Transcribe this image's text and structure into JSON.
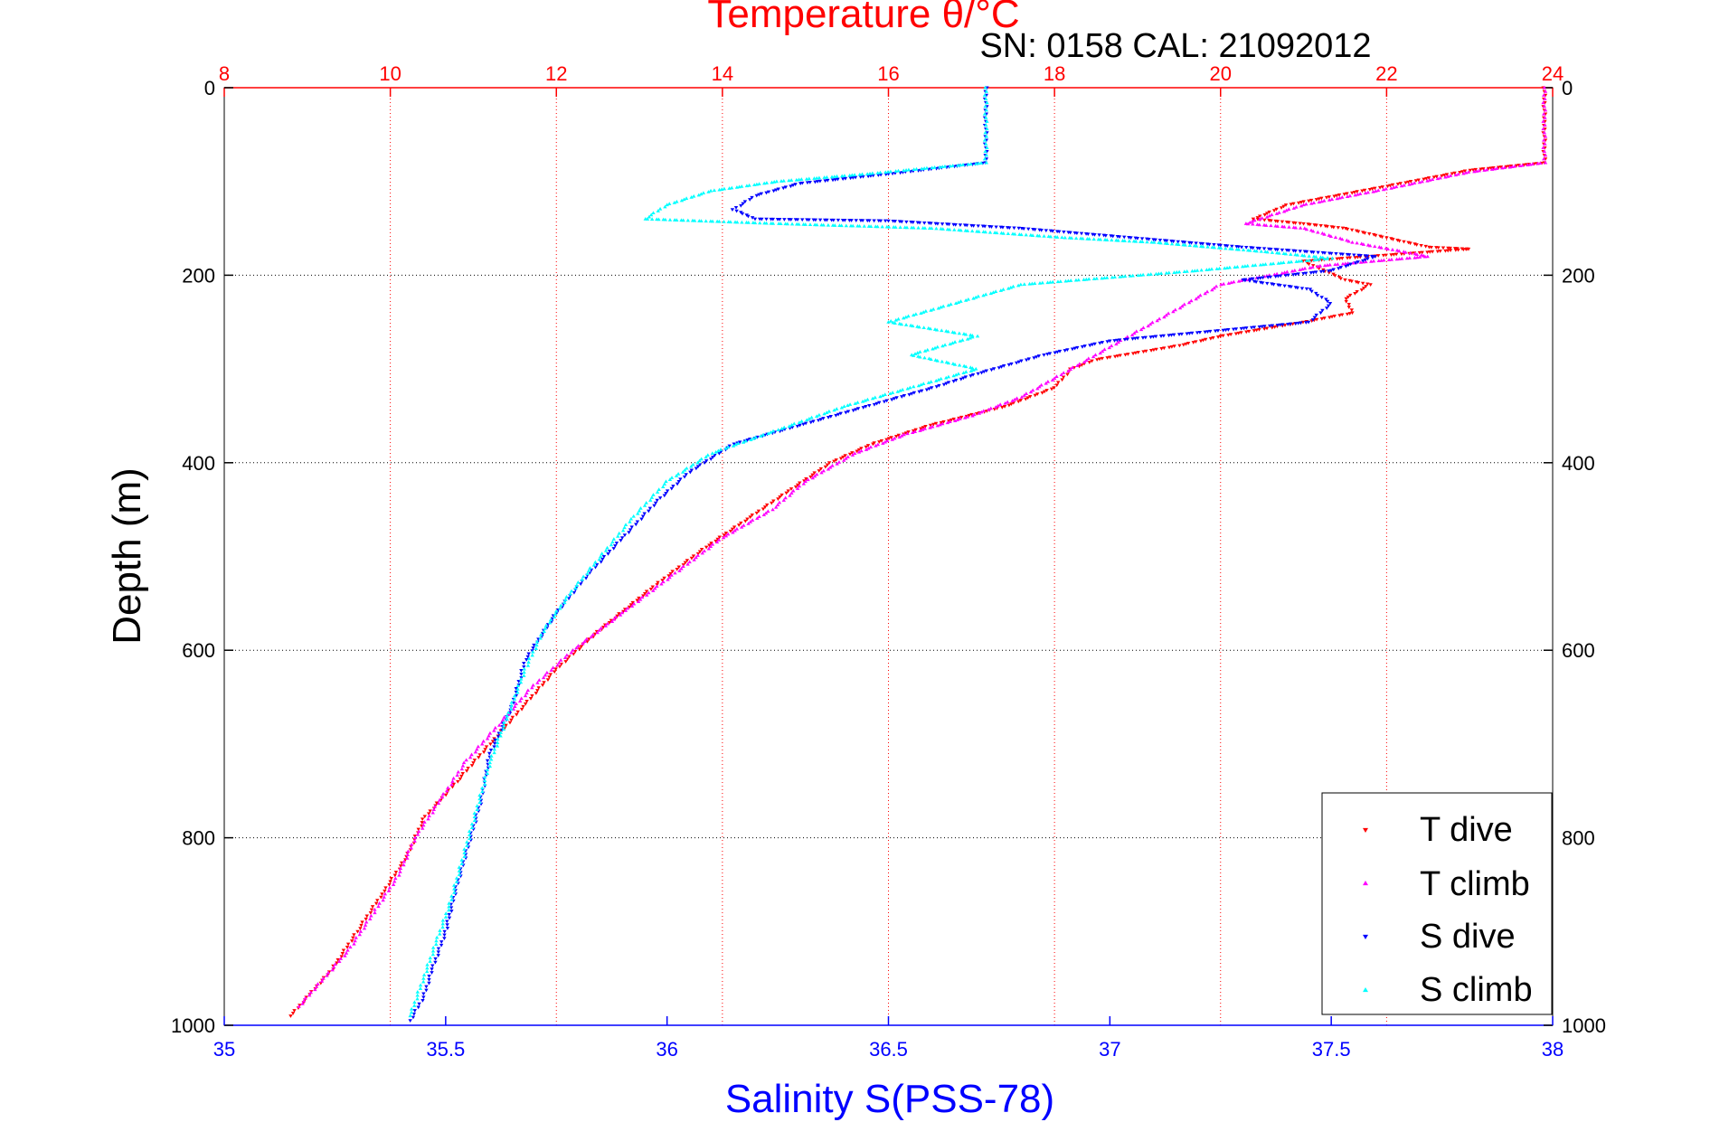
{
  "chart_data": {
    "type": "scatter",
    "title": "Temperature θ/°C",
    "annotation": "SN: 0158  CAL: 21092012",
    "xlabel": "Salinity S(PSS-78)",
    "ylabel": "Depth (m)",
    "x_bottom": {
      "label": "Salinity S(PSS-78)",
      "range": [
        35,
        38
      ],
      "ticks": [
        "35",
        "35.5",
        "36",
        "36.5",
        "37",
        "37.5",
        "38"
      ],
      "color": "#0000ff"
    },
    "x_top": {
      "label": "Temperature θ/°C",
      "range": [
        8,
        24
      ],
      "ticks": [
        "8",
        "10",
        "12",
        "14",
        "16",
        "18",
        "20",
        "22",
        "24"
      ],
      "color": "#ff0000"
    },
    "y": {
      "label": "Depth (m)",
      "range": [
        0,
        1000
      ],
      "reversed": true,
      "ticks": [
        "0",
        "200",
        "400",
        "600",
        "800",
        "1000"
      ]
    },
    "grid": true,
    "legend_position": "bottom-right",
    "series": [
      {
        "name": "T dive",
        "axis": "temperature",
        "color": "#ff0000",
        "marker": "triangle-down",
        "points": [
          [
            23.9,
            0
          ],
          [
            23.9,
            40
          ],
          [
            23.9,
            80
          ],
          [
            23.0,
            88
          ],
          [
            22.0,
            105
          ],
          [
            20.8,
            125
          ],
          [
            20.4,
            140
          ],
          [
            21.0,
            145
          ],
          [
            21.5,
            150
          ],
          [
            22.5,
            170
          ],
          [
            23.0,
            172
          ],
          [
            21.0,
            185
          ],
          [
            21.5,
            205
          ],
          [
            21.8,
            210
          ],
          [
            21.5,
            225
          ],
          [
            21.6,
            240
          ],
          [
            21.0,
            250
          ],
          [
            20.0,
            265
          ],
          [
            19.5,
            275
          ],
          [
            18.5,
            290
          ],
          [
            18.2,
            300
          ],
          [
            18.0,
            320
          ],
          [
            17.4,
            340
          ],
          [
            16.5,
            360
          ],
          [
            15.8,
            380
          ],
          [
            15.3,
            400
          ],
          [
            14.8,
            430
          ],
          [
            14.3,
            460
          ],
          [
            13.8,
            490
          ],
          [
            13.2,
            530
          ],
          [
            12.5,
            580
          ],
          [
            12.0,
            620
          ],
          [
            11.6,
            660
          ],
          [
            11.2,
            700
          ],
          [
            10.8,
            740
          ],
          [
            10.4,
            780
          ],
          [
            10.2,
            820
          ],
          [
            9.9,
            860
          ],
          [
            9.6,
            900
          ],
          [
            9.3,
            940
          ],
          [
            9.0,
            970
          ],
          [
            8.8,
            990
          ]
        ]
      },
      {
        "name": "T climb",
        "axis": "temperature",
        "color": "#ff00ff",
        "marker": "triangle-up",
        "points": [
          [
            23.9,
            0
          ],
          [
            23.9,
            40
          ],
          [
            23.9,
            80
          ],
          [
            23.0,
            90
          ],
          [
            22.0,
            108
          ],
          [
            21.0,
            125
          ],
          [
            20.3,
            145
          ],
          [
            21.0,
            150
          ],
          [
            21.6,
            165
          ],
          [
            22.5,
            180
          ],
          [
            21.2,
            190
          ],
          [
            20.0,
            210
          ],
          [
            19.5,
            235
          ],
          [
            19.0,
            260
          ],
          [
            18.5,
            285
          ],
          [
            18.0,
            310
          ],
          [
            17.6,
            330
          ],
          [
            17.0,
            350
          ],
          [
            16.2,
            370
          ],
          [
            15.6,
            390
          ],
          [
            15.0,
            420
          ],
          [
            14.6,
            450
          ],
          [
            14.0,
            480
          ],
          [
            13.4,
            520
          ],
          [
            12.8,
            560
          ],
          [
            12.2,
            600
          ],
          [
            11.7,
            640
          ],
          [
            11.3,
            680
          ],
          [
            10.9,
            720
          ],
          [
            10.6,
            760
          ],
          [
            10.3,
            800
          ],
          [
            10.1,
            840
          ],
          [
            9.8,
            880
          ],
          [
            9.5,
            920
          ],
          [
            9.2,
            950
          ],
          [
            8.9,
            980
          ]
        ]
      },
      {
        "name": "S dive",
        "axis": "salinity",
        "color": "#0000ff",
        "marker": "triangle-down",
        "points": [
          [
            36.72,
            0
          ],
          [
            36.72,
            40
          ],
          [
            36.72,
            80
          ],
          [
            36.5,
            92
          ],
          [
            36.3,
            102
          ],
          [
            36.2,
            115
          ],
          [
            36.15,
            130
          ],
          [
            36.2,
            140
          ],
          [
            36.5,
            142
          ],
          [
            36.8,
            150
          ],
          [
            37.0,
            158
          ],
          [
            37.3,
            170
          ],
          [
            37.6,
            180
          ],
          [
            37.5,
            195
          ],
          [
            37.3,
            205
          ],
          [
            37.45,
            215
          ],
          [
            37.5,
            230
          ],
          [
            37.45,
            250
          ],
          [
            37.0,
            270
          ],
          [
            36.85,
            285
          ],
          [
            36.7,
            305
          ],
          [
            36.6,
            320
          ],
          [
            36.45,
            340
          ],
          [
            36.3,
            360
          ],
          [
            36.15,
            380
          ],
          [
            36.05,
            410
          ],
          [
            35.98,
            440
          ],
          [
            35.9,
            480
          ],
          [
            35.82,
            520
          ],
          [
            35.75,
            560
          ],
          [
            35.68,
            610
          ],
          [
            35.65,
            660
          ],
          [
            35.6,
            710
          ],
          [
            35.58,
            760
          ],
          [
            35.55,
            810
          ],
          [
            35.52,
            860
          ],
          [
            35.5,
            900
          ],
          [
            35.47,
            940
          ],
          [
            35.45,
            970
          ],
          [
            35.42,
            995
          ]
        ]
      },
      {
        "name": "S climb",
        "axis": "salinity",
        "color": "#00ffff",
        "marker": "triangle-up",
        "points": [
          [
            36.72,
            0
          ],
          [
            36.72,
            40
          ],
          [
            36.72,
            80
          ],
          [
            36.45,
            92
          ],
          [
            36.25,
            100
          ],
          [
            36.1,
            110
          ],
          [
            36.0,
            125
          ],
          [
            35.95,
            140
          ],
          [
            36.25,
            145
          ],
          [
            36.6,
            150
          ],
          [
            36.9,
            160
          ],
          [
            37.1,
            165
          ],
          [
            37.35,
            175
          ],
          [
            37.5,
            182
          ],
          [
            37.2,
            195
          ],
          [
            36.8,
            210
          ],
          [
            36.5,
            250
          ],
          [
            36.7,
            265
          ],
          [
            36.55,
            285
          ],
          [
            36.7,
            300
          ],
          [
            36.55,
            320
          ],
          [
            36.4,
            340
          ],
          [
            36.25,
            365
          ],
          [
            36.1,
            390
          ],
          [
            36.0,
            420
          ],
          [
            35.92,
            460
          ],
          [
            35.85,
            500
          ],
          [
            35.78,
            540
          ],
          [
            35.72,
            580
          ],
          [
            35.68,
            620
          ],
          [
            35.64,
            670
          ],
          [
            35.6,
            720
          ],
          [
            35.57,
            770
          ],
          [
            35.54,
            820
          ],
          [
            35.51,
            870
          ],
          [
            35.48,
            910
          ],
          [
            35.45,
            950
          ],
          [
            35.42,
            990
          ]
        ]
      }
    ]
  }
}
